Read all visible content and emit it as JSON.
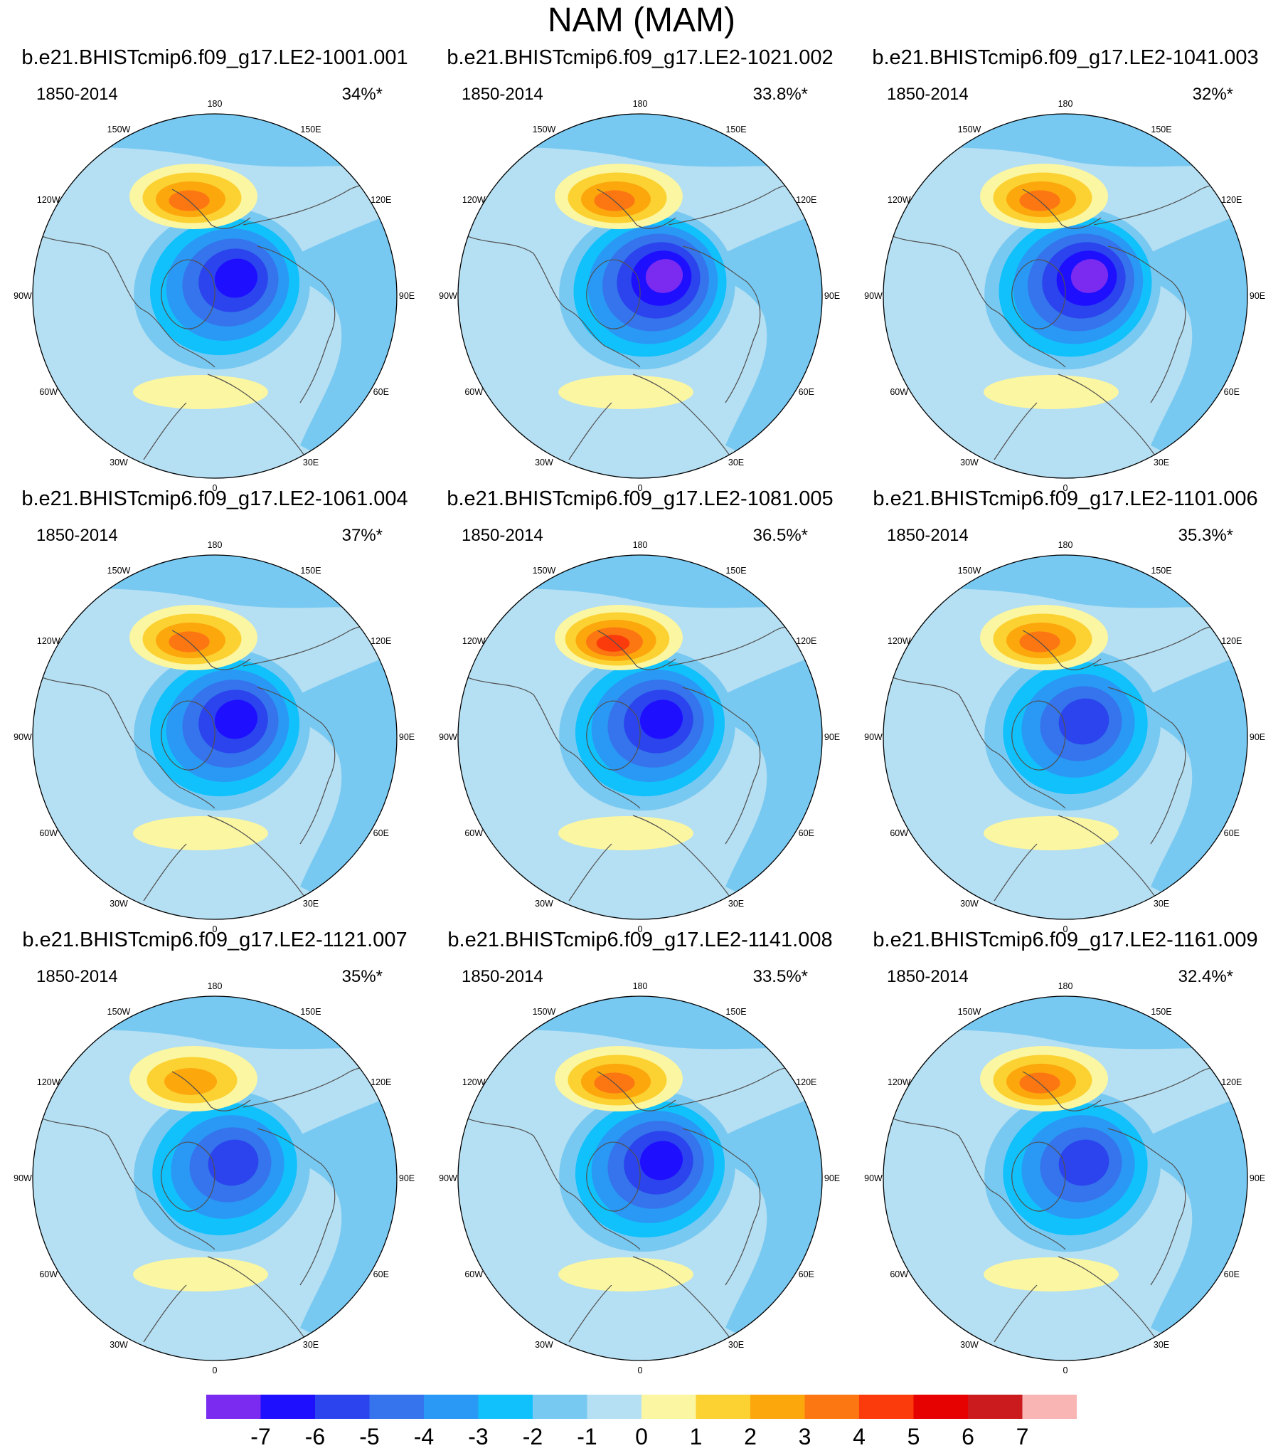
{
  "chart_data": {
    "type": "heatmap",
    "projection": "north-polar-stereographic",
    "title": "NAM (MAM)",
    "longitude_labels": [
      "180",
      "150E",
      "120E",
      "90E",
      "60E",
      "30E",
      "0",
      "30W",
      "60W",
      "90W",
      "120W",
      "150W"
    ],
    "colorbar": {
      "tick_labels": [
        "-7",
        "-6",
        "-5",
        "-4",
        "-3",
        "-2",
        "-1",
        "0",
        "1",
        "2",
        "3",
        "4",
        "5",
        "6",
        "7"
      ],
      "bins": [
        {
          "range": "< -7",
          "color": "#7B2BEF"
        },
        {
          "range": "-7 to -6",
          "color": "#1E0FFF"
        },
        {
          "range": "-6 to -5",
          "color": "#2B44EE"
        },
        {
          "range": "-5 to -4",
          "color": "#3574EC"
        },
        {
          "range": "-4 to -3",
          "color": "#2A98F5"
        },
        {
          "range": "-3 to -2",
          "color": "#11C1FB"
        },
        {
          "range": "-2 to -1",
          "color": "#78C9F2"
        },
        {
          "range": "-1 to 0",
          "color": "#B5DFF2"
        },
        {
          "range": "0 to 1",
          "color": "#FBF6A2"
        },
        {
          "range": "1 to 2",
          "color": "#FCD233"
        },
        {
          "range": "2 to 3",
          "color": "#FCA80D"
        },
        {
          "range": "3 to 4",
          "color": "#FC7712"
        },
        {
          "range": "4 to 5",
          "color": "#FC3B0C"
        },
        {
          "range": "5 to 6",
          "color": "#E60200"
        },
        {
          "range": "6 to 7",
          "color": "#CC1B1E"
        },
        {
          "range": "> 7",
          "color": "#F9B4B4"
        }
      ]
    },
    "panels": [
      {
        "title": "b.e21.BHISTcmip6.f09_g17.LE2-1001.001",
        "period": "1850-2014",
        "variance_explained": "34%*",
        "variance_pct": 34.0,
        "pacific_high_max": 4,
        "arctic_low_min": -6
      },
      {
        "title": "b.e21.BHISTcmip6.f09_g17.LE2-1021.002",
        "period": "1850-2014",
        "variance_explained": "33.8%*",
        "variance_pct": 33.8,
        "pacific_high_max": 4,
        "arctic_low_min": -7
      },
      {
        "title": "b.e21.BHISTcmip6.f09_g17.LE2-1041.003",
        "period": "1850-2014",
        "variance_explained": "32%*",
        "variance_pct": 32.0,
        "pacific_high_max": 4,
        "arctic_low_min": -7
      },
      {
        "title": "b.e21.BHISTcmip6.f09_g17.LE2-1061.004",
        "period": "1850-2014",
        "variance_explained": "37%*",
        "variance_pct": 37.0,
        "pacific_high_max": 4,
        "arctic_low_min": -6
      },
      {
        "title": "b.e21.BHISTcmip6.f09_g17.LE2-1081.005",
        "period": "1850-2014",
        "variance_explained": "36.5%*",
        "variance_pct": 36.5,
        "pacific_high_max": 5,
        "arctic_low_min": -6
      },
      {
        "title": "b.e21.BHISTcmip6.f09_g17.LE2-1101.006",
        "period": "1850-2014",
        "variance_explained": "35.3%*",
        "variance_pct": 35.3,
        "pacific_high_max": 4,
        "arctic_low_min": -5
      },
      {
        "title": "b.e21.BHISTcmip6.f09_g17.LE2-1121.007",
        "period": "1850-2014",
        "variance_explained": "35%*",
        "variance_pct": 35.0,
        "pacific_high_max": 3,
        "arctic_low_min": -5
      },
      {
        "title": "b.e21.BHISTcmip6.f09_g17.LE2-1141.008",
        "period": "1850-2014",
        "variance_explained": "33.5%*",
        "variance_pct": 33.5,
        "pacific_high_max": 4,
        "arctic_low_min": -6
      },
      {
        "title": "b.e21.BHISTcmip6.f09_g17.LE2-1161.009",
        "period": "1850-2014",
        "variance_explained": "32.4%*",
        "variance_pct": 32.4,
        "pacific_high_max": 4,
        "arctic_low_min": -5
      }
    ]
  }
}
